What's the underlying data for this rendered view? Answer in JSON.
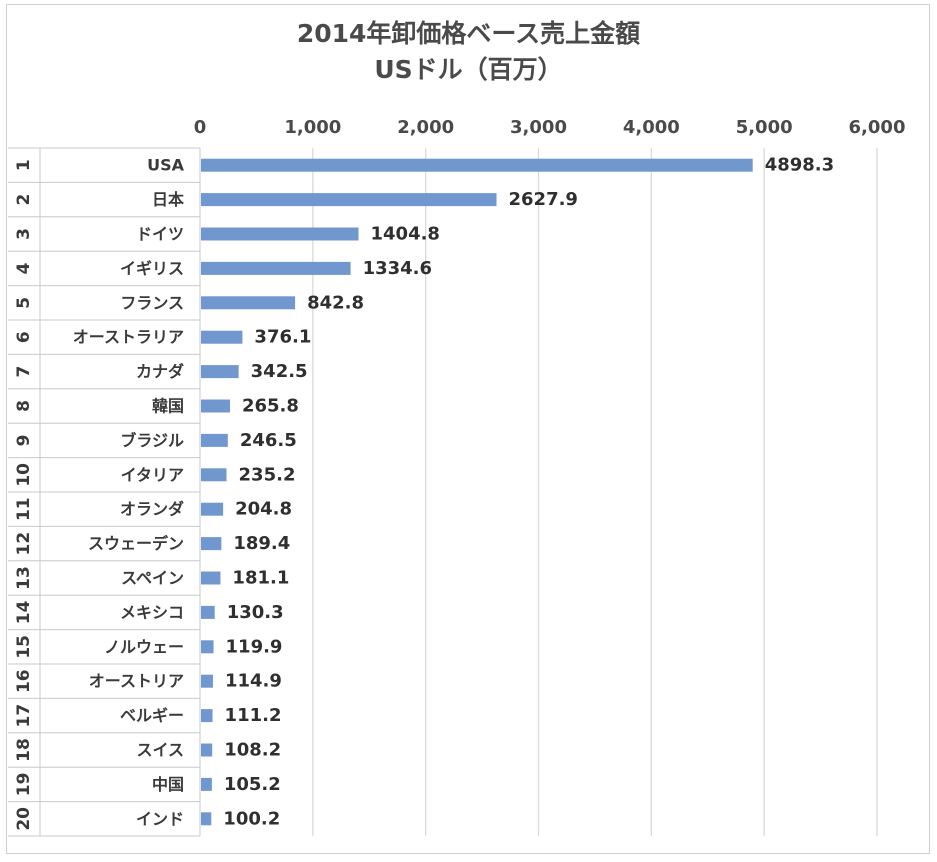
{
  "chart_data": {
    "type": "bar",
    "orientation": "horizontal",
    "title_lines": [
      "2014年卸価格ベース売上金額",
      "USドル（百万）"
    ],
    "xlim": [
      0,
      6000
    ],
    "x_ticks": [
      0,
      1000,
      2000,
      3000,
      4000,
      5000,
      6000
    ],
    "x_tick_labels": [
      "0",
      "1,000",
      "2,000",
      "3,000",
      "4,000",
      "5,000",
      "6,000"
    ],
    "axis_position": "top",
    "grid": true,
    "bar_color": "#7098cf",
    "ranks": [
      "1",
      "2",
      "3",
      "4",
      "5",
      "6",
      "7",
      "8",
      "9",
      "10",
      "11",
      "12",
      "13",
      "14",
      "15",
      "16",
      "17",
      "18",
      "19",
      "20"
    ],
    "categories": [
      "USA",
      "日本",
      "ドイツ",
      "イギリス",
      "フランス",
      "オーストラリア",
      "カナダ",
      "韓国",
      "ブラジル",
      "イタリア",
      "オランダ",
      "スウェーデン",
      "スペイン",
      "メキシコ",
      "ノルウェー",
      "オーストリア",
      "ベルギー",
      "スイス",
      "中国",
      "インド"
    ],
    "values": [
      4898.3,
      2627.9,
      1404.8,
      1334.6,
      842.8,
      376.1,
      342.5,
      265.8,
      246.5,
      235.2,
      204.8,
      189.4,
      181.1,
      130.3,
      119.9,
      114.9,
      111.2,
      108.2,
      105.2,
      100.2
    ],
    "value_labels": [
      "4898.3",
      "2627.9",
      "1404.8",
      "1334.6",
      "842.8",
      "376.1",
      "342.5",
      "265.8",
      "246.5",
      "235.2",
      "204.8",
      "189.4",
      "181.1",
      "130.3",
      "119.9",
      "114.9",
      "111.2",
      "108.2",
      "105.2",
      "100.2"
    ]
  }
}
